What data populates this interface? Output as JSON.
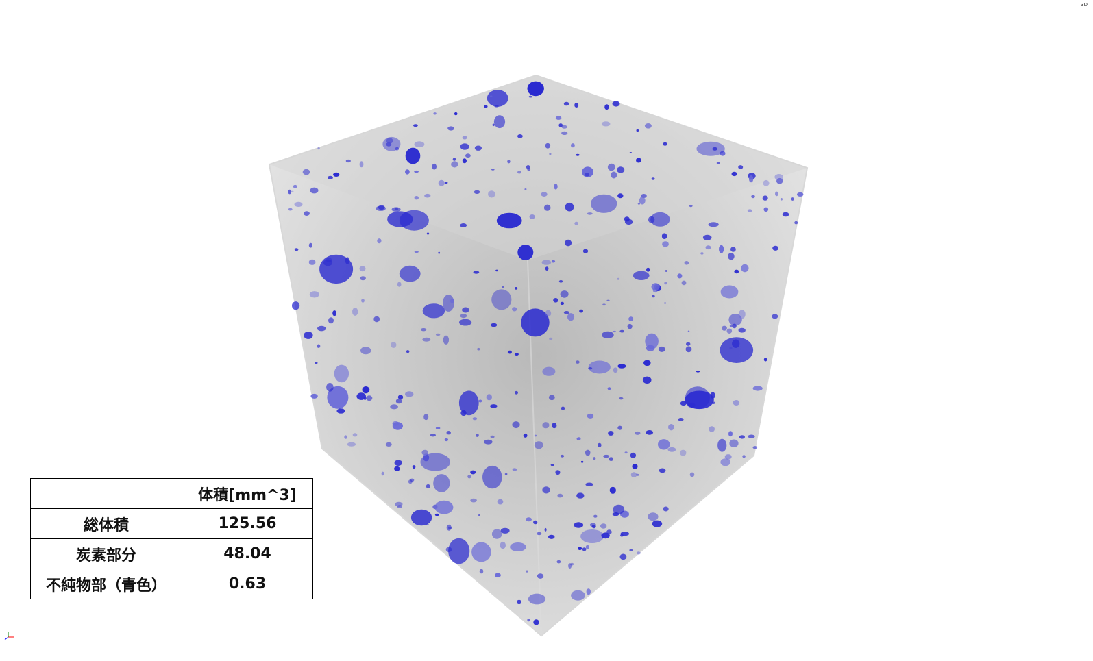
{
  "corner_label": "3D",
  "table": {
    "header": [
      "体積[mm^3]"
    ],
    "rows": [
      [
        "総体積",
        "125.56"
      ],
      [
        "炭素部分",
        "48.04"
      ],
      [
        "不純物部（青色）",
        "0.63"
      ]
    ]
  }
}
